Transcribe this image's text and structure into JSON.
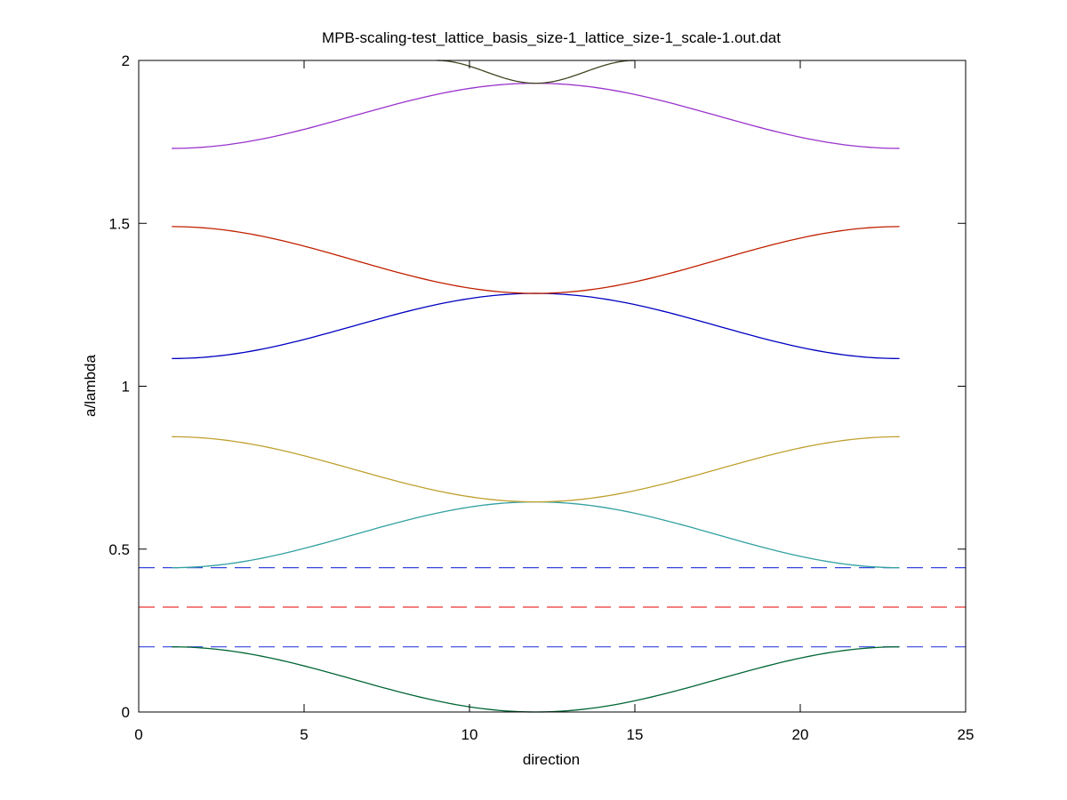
{
  "chart_data": {
    "type": "line",
    "title": "MPB-scaling-test_lattice_basis_size-1_lattice_size-1_scale-1.out.dat",
    "xlabel": "direction",
    "ylabel": "a/lambda",
    "xlim": [
      0,
      25
    ],
    "ylim": [
      0,
      2
    ],
    "xticks": [
      0,
      5,
      10,
      15,
      20,
      25
    ],
    "yticks": [
      0,
      0.5,
      1,
      1.5,
      2
    ],
    "ytick_labels": [
      "0",
      "0.5",
      "1",
      "1.5",
      "2"
    ],
    "grid": false,
    "legend": "none",
    "series": [
      {
        "color": "#006633",
        "style": "solid",
        "x": [
          1,
          12,
          23
        ],
        "end_values": [
          0.2
        ],
        "mid_value": 0.0
      },
      {
        "color": "#33a0a0",
        "style": "solid",
        "x": [
          1,
          12,
          23
        ],
        "end_values": [
          0.443
        ],
        "mid_value": 0.645
      },
      {
        "color": "#c0a030",
        "style": "solid",
        "x": [
          1,
          12,
          23
        ],
        "end_values": [
          0.845
        ],
        "mid_value": 0.645
      },
      {
        "color": "#0000c0",
        "style": "solid",
        "x": [
          1,
          12,
          23
        ],
        "end_values": [
          1.085
        ],
        "mid_value": 1.285
      },
      {
        "color": "#c02000",
        "style": "solid",
        "x": [
          1,
          12,
          23
        ],
        "end_values": [
          1.49
        ],
        "mid_value": 1.285
      },
      {
        "color": "#9933cc",
        "style": "solid",
        "x": [
          1,
          12,
          23
        ],
        "end_values": [
          1.73
        ],
        "mid_value": 1.93
      },
      {
        "color": "#444422",
        "style": "solid",
        "x": [
          9,
          12,
          15
        ],
        "end_values": [
          2.0
        ],
        "mid_value": 1.93
      }
    ],
    "hlines": [
      {
        "y": 0.2,
        "color": "#3344dd",
        "style": "dashed"
      },
      {
        "y": 0.322,
        "color": "#ee3333",
        "style": "dashed"
      },
      {
        "y": 0.443,
        "color": "#3344dd",
        "style": "dashed"
      }
    ]
  }
}
